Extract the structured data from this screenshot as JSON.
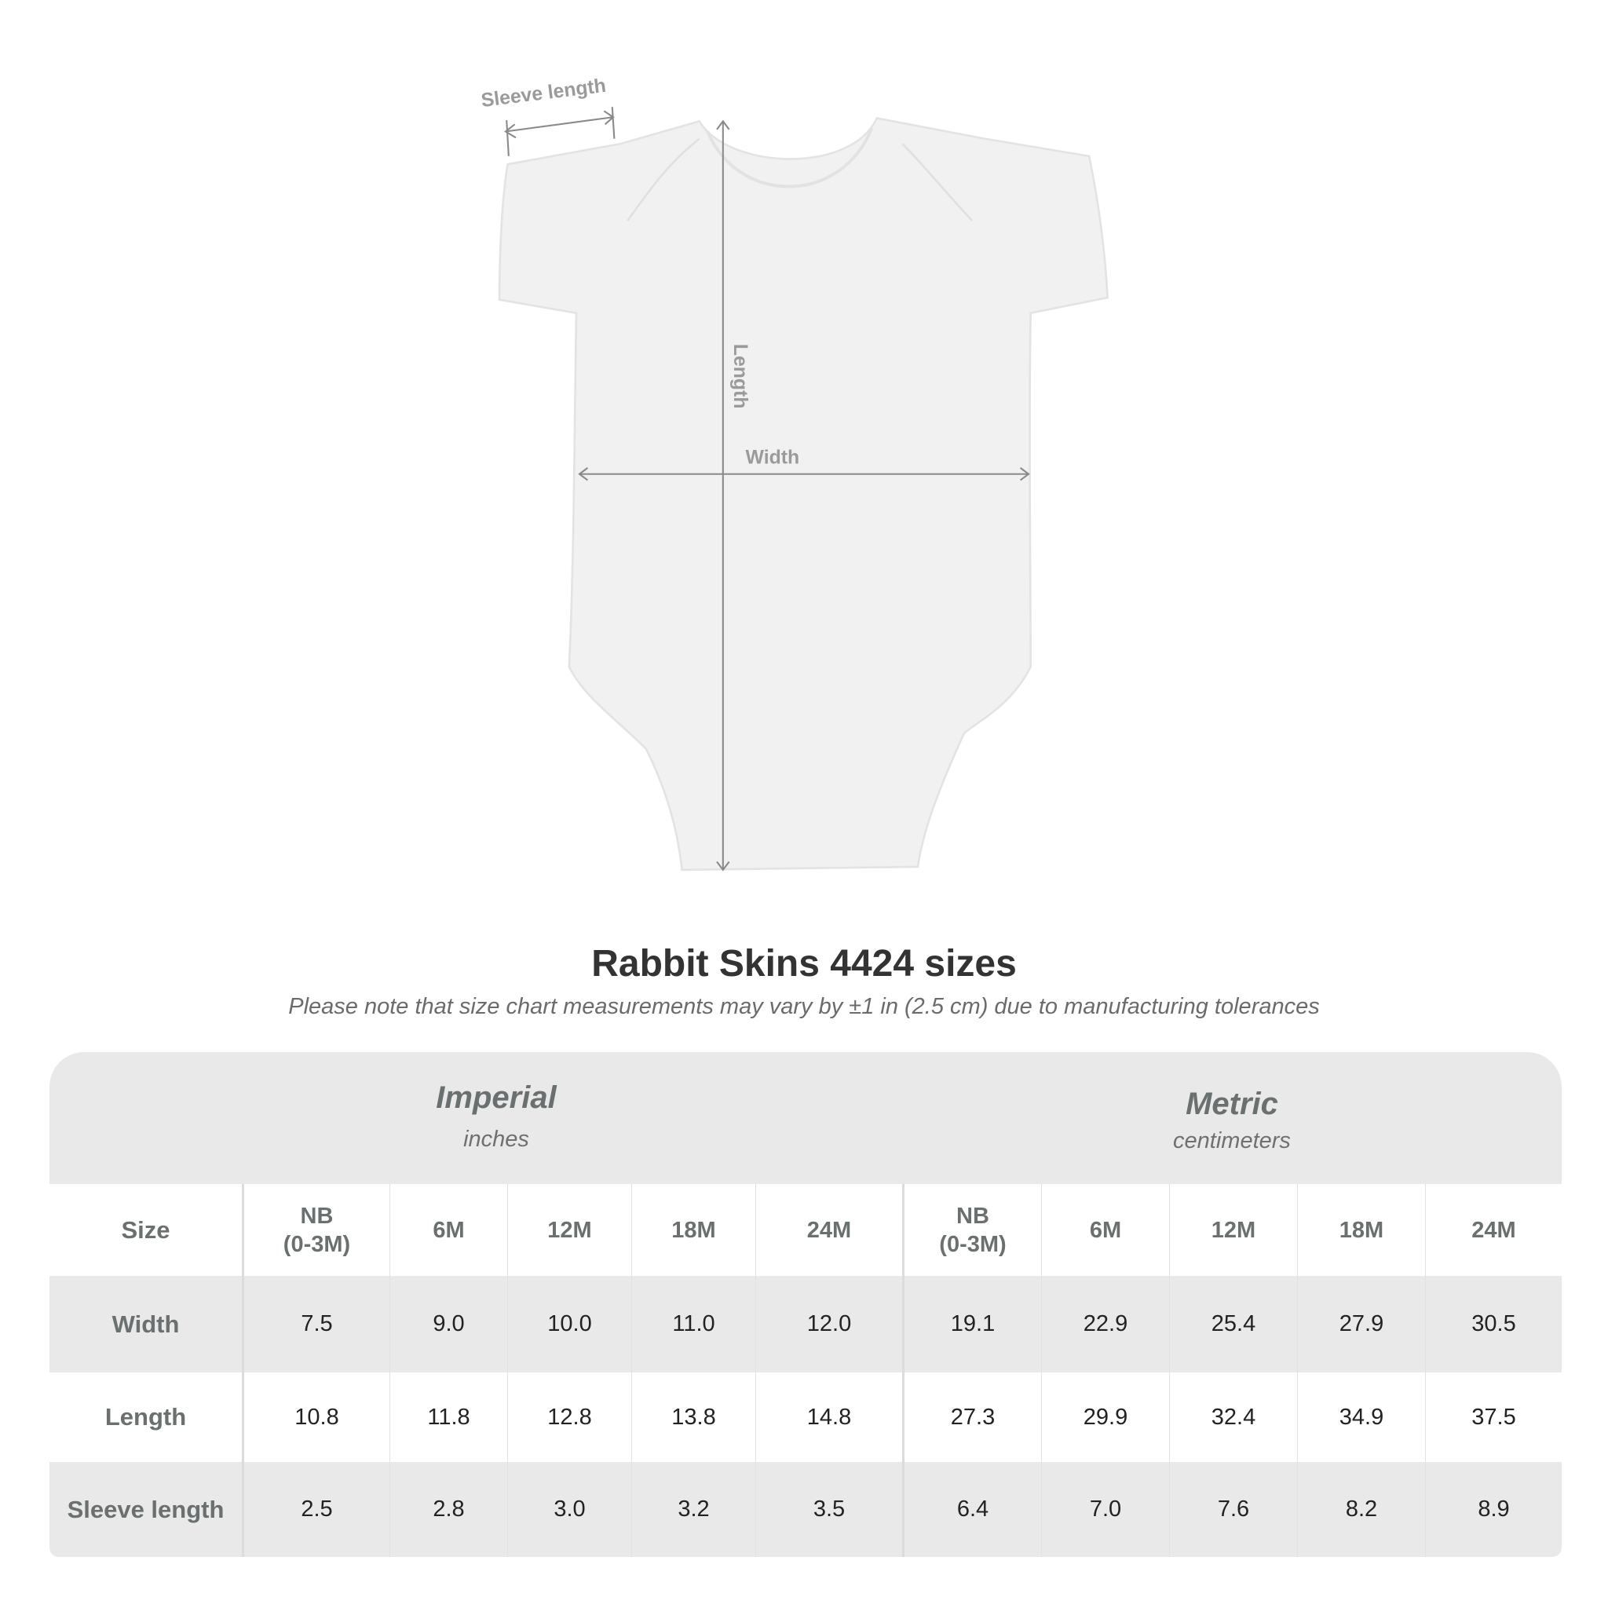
{
  "diagram": {
    "labels": {
      "sleeve": "Sleeve length",
      "length": "Length",
      "width": "Width"
    }
  },
  "title": "Rabbit Skins 4424 sizes",
  "subtitle": "Please note that size chart measurements may vary by ±1 in (2.5 cm) due to manufacturing tolerances",
  "table": {
    "imperial": {
      "name": "Imperial",
      "unit": "inches"
    },
    "metric": {
      "name": "Metric",
      "unit": "centimeters"
    },
    "size_label": "Size",
    "sizes": [
      "NB\n(0-3M)",
      "6M",
      "12M",
      "18M",
      "24M",
      "NB\n(0-3M)",
      "6M",
      "12M",
      "18M",
      "24M"
    ],
    "rows": [
      {
        "label": "Width",
        "values": [
          "7.5",
          "9.0",
          "10.0",
          "11.0",
          "12.0",
          "19.1",
          "22.9",
          "25.4",
          "27.9",
          "30.5"
        ]
      },
      {
        "label": "Length",
        "values": [
          "10.8",
          "11.8",
          "12.8",
          "13.8",
          "14.8",
          "27.3",
          "29.9",
          "32.4",
          "34.9",
          "37.5"
        ]
      },
      {
        "label": "Sleeve length",
        "values": [
          "2.5",
          "2.8",
          "3.0",
          "3.2",
          "3.5",
          "6.4",
          "7.0",
          "7.6",
          "8.2",
          "8.9"
        ]
      }
    ]
  },
  "colors": {
    "band": "#e9e9e9",
    "header_text": "#6a706f",
    "title": "#333333"
  }
}
